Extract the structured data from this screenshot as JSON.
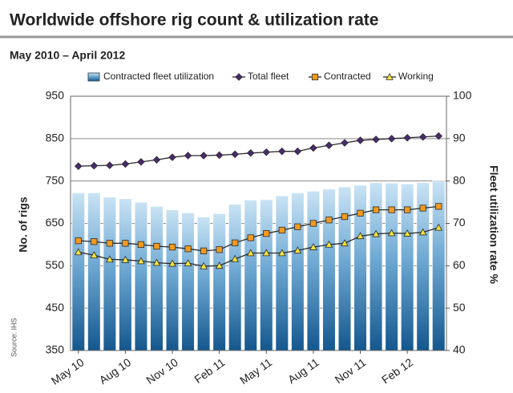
{
  "chart_data": {
    "type": "bar",
    "title": "Worldwide offshore rig count & utilization rate",
    "subtitle": "May 2010 – April 2012",
    "ylabel": "No. of rigs",
    "y2label": "Fleet utilization rate %",
    "source": "Source: IHS",
    "categories": [
      "May 10",
      null,
      null,
      "Aug 10",
      null,
      null,
      "Nov 10",
      null,
      null,
      "Feb 11",
      null,
      null,
      "May 11",
      null,
      null,
      "Aug 11",
      null,
      null,
      "Nov 11",
      null,
      null,
      "Feb 12",
      null,
      null
    ],
    "ylim": [
      350,
      950
    ],
    "yticks": [
      350,
      450,
      550,
      650,
      750,
      850,
      950
    ],
    "y2lim": [
      40,
      100
    ],
    "y2ticks": [
      40,
      50,
      60,
      70,
      80,
      90,
      100
    ],
    "grid": true,
    "legend": "top",
    "series": [
      {
        "name": "Contracted fleet utilization",
        "type": "bar",
        "axis": "y2",
        "color": "#1f5f93",
        "values": [
          77.2,
          77.2,
          76.2,
          75.8,
          75,
          74,
          73.2,
          72.5,
          71.5,
          72.3,
          74.5,
          75.5,
          75.6,
          76.5,
          77.2,
          77.6,
          78.1,
          78.6,
          79,
          79.6,
          79.5,
          79.3,
          79.6,
          80
        ]
      },
      {
        "name": "Total fleet",
        "type": "line",
        "marker": "diamond",
        "color": "#4b2a6e",
        "values": [
          785,
          786,
          787,
          790,
          795,
          800,
          806,
          810,
          810,
          811,
          813,
          816,
          818,
          820,
          820,
          828,
          834,
          840,
          846,
          848,
          850,
          852,
          854,
          856
        ]
      },
      {
        "name": "Contracted",
        "type": "line",
        "marker": "square",
        "color": "#f29a1f",
        "values": [
          609,
          607,
          603,
          603,
          600,
          596,
          594,
          590,
          585,
          588,
          604,
          616,
          626,
          634,
          642,
          650,
          658,
          666,
          674,
          682,
          682,
          682,
          686,
          690
        ]
      },
      {
        "name": "Working",
        "type": "line",
        "marker": "triangle",
        "color": "#f5e33b",
        "values": [
          582,
          575,
          565,
          564,
          561,
          557,
          555,
          556,
          549,
          550,
          566,
          580,
          580,
          580,
          586,
          594,
          600,
          603,
          620,
          625,
          627,
          626,
          629,
          640
        ]
      }
    ]
  }
}
